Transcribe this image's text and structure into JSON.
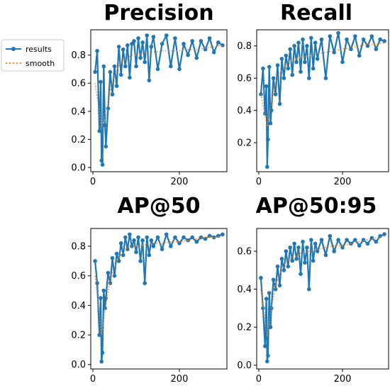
{
  "legend": {
    "items": [
      {
        "label": "results",
        "color": "#1f77b4",
        "style": "line-dot"
      },
      {
        "label": "smooth",
        "color": "#ff7f0e",
        "style": "dotted"
      }
    ]
  },
  "chart_data": [
    {
      "type": "line",
      "title": "Precision",
      "xlabel": "",
      "ylabel": "",
      "xlim": [
        -5,
        310
      ],
      "ylim": [
        -0.03,
        0.98
      ],
      "xticks": [
        0,
        200
      ],
      "yticks": [
        0.0,
        0.2,
        0.4,
        0.6,
        0.8
      ],
      "ytick_labels": [
        "0.0",
        "0.2",
        "0.4",
        "0.6",
        "0.8"
      ],
      "grid": false,
      "series": [
        {
          "name": "results",
          "x": [
            5,
            10,
            15,
            18,
            20,
            22,
            25,
            28,
            30,
            35,
            40,
            45,
            50,
            55,
            60,
            65,
            70,
            75,
            80,
            85,
            90,
            95,
            100,
            105,
            110,
            115,
            120,
            125,
            130,
            135,
            140,
            150,
            160,
            170,
            180,
            190,
            200,
            210,
            220,
            230,
            240,
            250,
            260,
            270,
            280,
            290,
            300
          ],
          "values": [
            0.68,
            0.83,
            0.26,
            0.61,
            0.05,
            0.02,
            0.72,
            0.3,
            0.15,
            0.42,
            0.68,
            0.52,
            0.72,
            0.58,
            0.86,
            0.66,
            0.84,
            0.72,
            0.87,
            0.64,
            0.88,
            0.9,
            0.72,
            0.92,
            0.78,
            0.89,
            0.75,
            0.94,
            0.62,
            0.86,
            0.93,
            0.7,
            0.88,
            0.94,
            0.72,
            0.92,
            0.7,
            0.88,
            0.8,
            0.9,
            0.78,
            0.9,
            0.84,
            0.92,
            0.82,
            0.89,
            0.87
          ]
        },
        {
          "name": "smooth",
          "x": [
            5,
            20,
            30,
            40,
            50,
            60,
            70,
            80,
            90,
            100,
            120,
            140,
            160,
            180,
            200,
            220,
            240,
            260,
            280,
            300
          ],
          "values": [
            0.6,
            0.3,
            0.35,
            0.55,
            0.65,
            0.72,
            0.76,
            0.78,
            0.8,
            0.8,
            0.82,
            0.82,
            0.83,
            0.83,
            0.83,
            0.84,
            0.84,
            0.85,
            0.86,
            0.87
          ]
        }
      ]
    },
    {
      "type": "line",
      "title": "Recall",
      "xlabel": "",
      "ylabel": "",
      "xlim": [
        -5,
        310
      ],
      "ylim": [
        0.02,
        0.9
      ],
      "xticks": [
        0,
        200
      ],
      "yticks": [
        0.2,
        0.4,
        0.6,
        0.8
      ],
      "ytick_labels": [
        "0.2",
        "0.4",
        "0.6",
        "0.8"
      ],
      "grid": false,
      "series": [
        {
          "name": "results",
          "x": [
            5,
            10,
            15,
            18,
            20,
            22,
            25,
            28,
            30,
            35,
            40,
            45,
            50,
            55,
            60,
            65,
            70,
            75,
            80,
            85,
            90,
            95,
            100,
            105,
            110,
            115,
            120,
            125,
            130,
            135,
            140,
            150,
            160,
            170,
            180,
            190,
            200,
            210,
            220,
            230,
            240,
            250,
            260,
            270,
            280,
            290,
            300
          ],
          "values": [
            0.5,
            0.66,
            0.38,
            0.55,
            0.05,
            0.22,
            0.67,
            0.32,
            0.4,
            0.6,
            0.5,
            0.68,
            0.44,
            0.72,
            0.6,
            0.74,
            0.66,
            0.78,
            0.62,
            0.8,
            0.7,
            0.82,
            0.64,
            0.84,
            0.7,
            0.8,
            0.6,
            0.85,
            0.66,
            0.82,
            0.72,
            0.84,
            0.6,
            0.86,
            0.76,
            0.88,
            0.7,
            0.84,
            0.78,
            0.86,
            0.74,
            0.84,
            0.8,
            0.86,
            0.78,
            0.84,
            0.83
          ]
        },
        {
          "name": "smooth",
          "x": [
            5,
            20,
            30,
            40,
            50,
            60,
            70,
            80,
            90,
            100,
            120,
            140,
            160,
            180,
            200,
            220,
            240,
            260,
            280,
            300
          ],
          "values": [
            0.5,
            0.3,
            0.45,
            0.58,
            0.63,
            0.66,
            0.7,
            0.71,
            0.72,
            0.73,
            0.74,
            0.75,
            0.76,
            0.77,
            0.78,
            0.79,
            0.8,
            0.81,
            0.81,
            0.82
          ]
        }
      ]
    },
    {
      "type": "line",
      "title": "AP@50",
      "xlabel": "",
      "ylabel": "",
      "xlim": [
        -5,
        310
      ],
      "ylim": [
        -0.03,
        0.92
      ],
      "xticks": [
        0,
        200
      ],
      "yticks": [
        0.0,
        0.2,
        0.4,
        0.6,
        0.8
      ],
      "ytick_labels": [
        "0.0",
        "0.2",
        "0.4",
        "0.6",
        "0.8"
      ],
      "grid": false,
      "series": [
        {
          "name": "results",
          "x": [
            5,
            10,
            15,
            18,
            20,
            22,
            25,
            28,
            30,
            35,
            40,
            45,
            50,
            55,
            60,
            65,
            70,
            75,
            80,
            85,
            90,
            95,
            100,
            105,
            110,
            115,
            120,
            125,
            130,
            135,
            140,
            150,
            160,
            170,
            180,
            190,
            200,
            210,
            220,
            230,
            240,
            250,
            260,
            270,
            280,
            290,
            300
          ],
          "values": [
            0.7,
            0.55,
            0.2,
            0.45,
            0.02,
            0.08,
            0.5,
            0.38,
            0.45,
            0.62,
            0.55,
            0.72,
            0.6,
            0.75,
            0.7,
            0.82,
            0.74,
            0.86,
            0.78,
            0.88,
            0.8,
            0.84,
            0.76,
            0.86,
            0.7,
            0.84,
            0.55,
            0.86,
            0.74,
            0.84,
            0.8,
            0.86,
            0.78,
            0.88,
            0.8,
            0.86,
            0.82,
            0.86,
            0.84,
            0.86,
            0.83,
            0.86,
            0.85,
            0.87,
            0.86,
            0.87,
            0.88
          ]
        },
        {
          "name": "smooth",
          "x": [
            5,
            20,
            30,
            40,
            50,
            60,
            70,
            80,
            90,
            100,
            120,
            140,
            160,
            180,
            200,
            220,
            240,
            260,
            280,
            300
          ],
          "values": [
            0.6,
            0.2,
            0.4,
            0.58,
            0.66,
            0.72,
            0.76,
            0.79,
            0.8,
            0.8,
            0.81,
            0.82,
            0.82,
            0.83,
            0.83,
            0.84,
            0.85,
            0.86,
            0.86,
            0.87
          ]
        }
      ]
    },
    {
      "type": "line",
      "title": "AP@50:95",
      "xlabel": "",
      "ylabel": "",
      "xlim": [
        -5,
        310
      ],
      "ylim": [
        -0.02,
        0.72
      ],
      "xticks": [
        0,
        200
      ],
      "yticks": [
        0.0,
        0.2,
        0.4,
        0.6
      ],
      "ytick_labels": [
        "0.0",
        "0.2",
        "0.4",
        "0.6"
      ],
      "grid": false,
      "series": [
        {
          "name": "results",
          "x": [
            5,
            10,
            15,
            18,
            20,
            22,
            25,
            28,
            30,
            35,
            40,
            45,
            50,
            55,
            60,
            65,
            70,
            75,
            80,
            85,
            90,
            95,
            100,
            105,
            110,
            115,
            120,
            125,
            130,
            135,
            140,
            150,
            160,
            170,
            180,
            190,
            200,
            210,
            220,
            230,
            240,
            250,
            260,
            270,
            280,
            290,
            300
          ],
          "values": [
            0.46,
            0.3,
            0.1,
            0.35,
            0.02,
            0.05,
            0.38,
            0.2,
            0.3,
            0.45,
            0.4,
            0.52,
            0.42,
            0.56,
            0.5,
            0.6,
            0.52,
            0.62,
            0.55,
            0.64,
            0.56,
            0.62,
            0.48,
            0.65,
            0.54,
            0.62,
            0.4,
            0.66,
            0.55,
            0.64,
            0.6,
            0.66,
            0.58,
            0.68,
            0.6,
            0.66,
            0.62,
            0.66,
            0.64,
            0.66,
            0.63,
            0.66,
            0.64,
            0.67,
            0.65,
            0.68,
            0.69
          ]
        },
        {
          "name": "smooth",
          "x": [
            5,
            20,
            30,
            40,
            50,
            60,
            70,
            80,
            90,
            100,
            120,
            140,
            160,
            180,
            200,
            220,
            240,
            260,
            280,
            300
          ],
          "values": [
            0.4,
            0.15,
            0.3,
            0.42,
            0.48,
            0.52,
            0.55,
            0.57,
            0.58,
            0.59,
            0.6,
            0.61,
            0.62,
            0.63,
            0.63,
            0.64,
            0.65,
            0.66,
            0.67,
            0.68
          ]
        }
      ]
    }
  ]
}
